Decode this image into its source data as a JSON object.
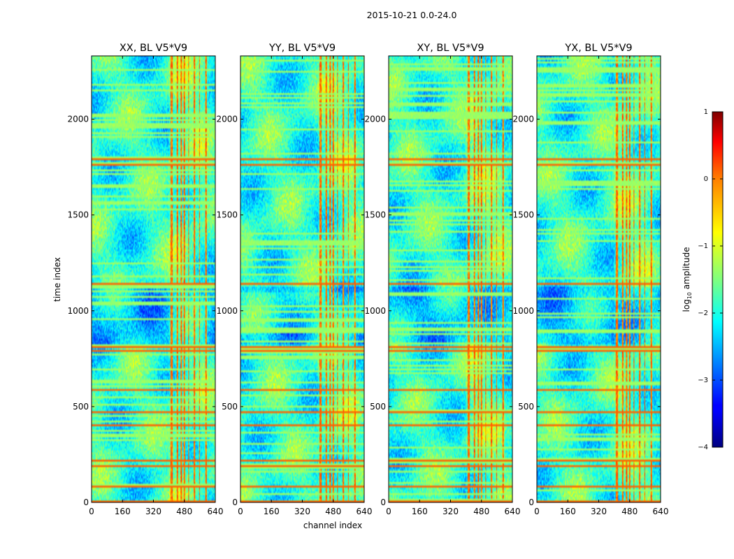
{
  "figure_title": "2015-10-21 0.0-24.0",
  "chart_data": {
    "type": "heatmap",
    "suptitle": "2015-10-21 0.0-24.0",
    "panels": [
      {
        "title": "XX, BL V5*V9",
        "variant": 0
      },
      {
        "title": "YY, BL V5*V9",
        "variant": 1
      },
      {
        "title": "XY, BL V5*V9",
        "variant": 2
      },
      {
        "title": "YX, BL V5*V9",
        "variant": 3
      }
    ],
    "xlabel": "channel index",
    "ylabel": "time index",
    "xlim": [
      0,
      640
    ],
    "ylim": [
      0,
      2330
    ],
    "xticks": [
      0,
      160,
      320,
      480,
      640
    ],
    "xtick_labels": [
      "0",
      "160",
      "320",
      "480",
      "640"
    ],
    "yticks": [
      0,
      500,
      1000,
      1500,
      2000
    ],
    "ytick_labels": [
      "0",
      "500",
      "1000",
      "1500",
      "2000"
    ],
    "colorbar": {
      "label_prefix": "log",
      "label_sub": "10",
      "label_suffix": " amplitude",
      "range": [
        -4,
        1
      ],
      "ticks": [
        1,
        0,
        -1,
        -2,
        -3,
        -4
      ],
      "tick_labels": [
        "1",
        "0",
        "−1",
        "−2",
        "−3",
        "−4"
      ],
      "colormap": "jet"
    },
    "features": {
      "rfi_channel_bands": [
        [
          410,
          420
        ],
        [
          440,
          448
        ],
        [
          460,
          466
        ],
        [
          475,
          485
        ],
        [
          500,
          505
        ],
        [
          530,
          536
        ],
        [
          555,
          560
        ],
        [
          590,
          596
        ]
      ],
      "bright_time_rows": [
        5,
        78,
        185,
        220,
        400,
        470,
        590,
        790,
        810,
        1140,
        1760,
        1790
      ],
      "quiet_time_block": [
        830,
        1130
      ]
    }
  }
}
